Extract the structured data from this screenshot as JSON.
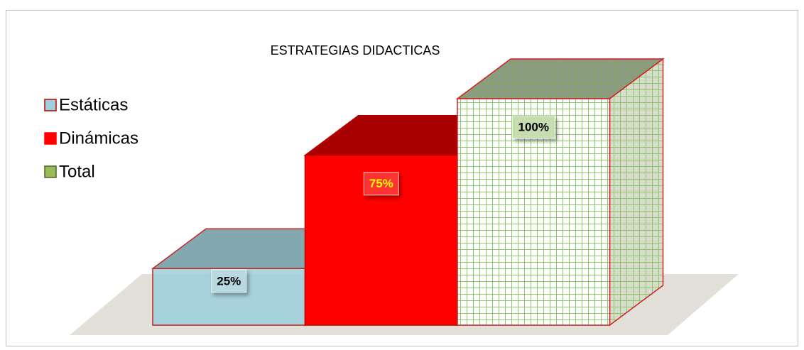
{
  "chart_data": {
    "type": "bar3d",
    "title": "ESTRATEGIAS DIDACTICAS",
    "series": [
      {
        "name": "Estáticas",
        "color": "#9dd0dc",
        "values": [
          25
        ],
        "value_labels": [
          "25%"
        ]
      },
      {
        "name": "Dinámicas",
        "color": "#ff0000",
        "values": [
          75
        ],
        "value_labels": [
          "75%"
        ]
      },
      {
        "name": "Total",
        "color": "#9bbb59",
        "values": [
          100
        ],
        "value_labels": [
          "100%"
        ]
      }
    ]
  }
}
